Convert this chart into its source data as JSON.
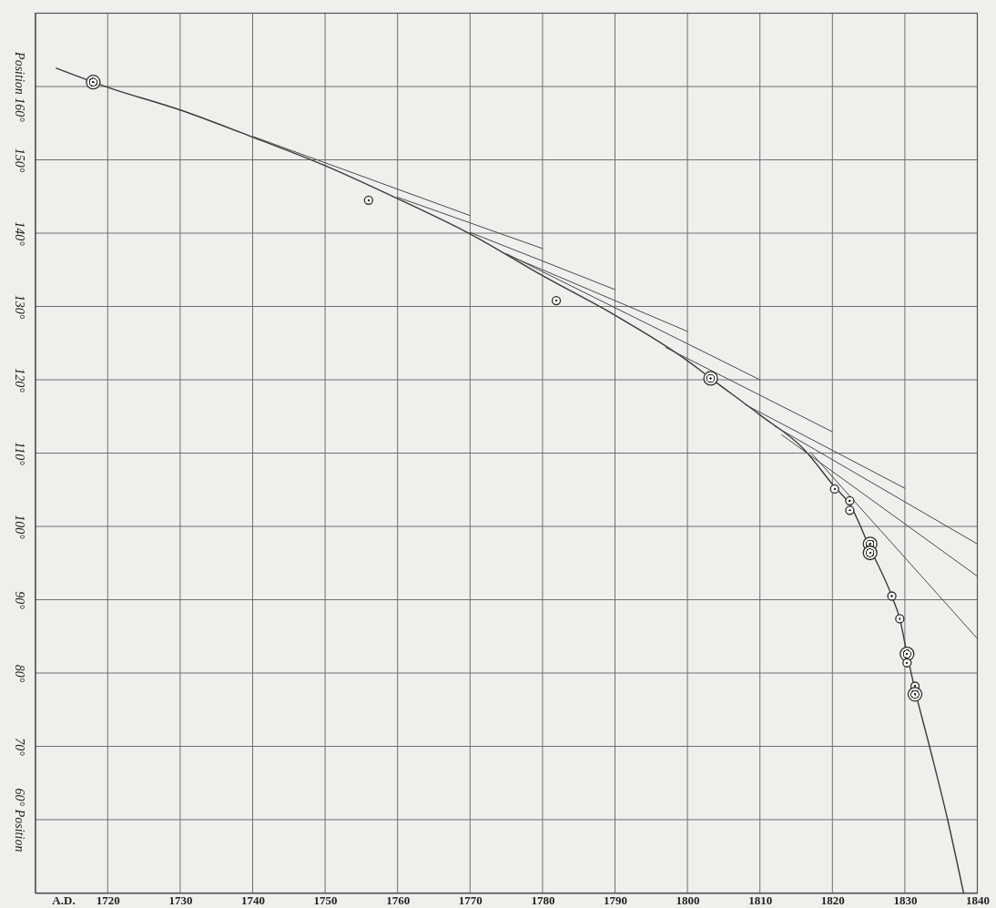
{
  "chart_data": {
    "type": "line",
    "xlabel": "A.D.",
    "xlim": [
      1710,
      1840
    ],
    "xticks": [
      1720,
      1730,
      1740,
      1750,
      1760,
      1770,
      1780,
      1790,
      1800,
      1810,
      1820,
      1830,
      1840
    ],
    "ylim": [
      50,
      170
    ],
    "yticks": [
      {
        "value": 60,
        "label": "60° Position"
      },
      {
        "value": 70,
        "label": "70°"
      },
      {
        "value": 80,
        "label": "80°"
      },
      {
        "value": 90,
        "label": "90°"
      },
      {
        "value": 100,
        "label": "100°"
      },
      {
        "value": 110,
        "label": "110°"
      },
      {
        "value": 120,
        "label": "120°"
      },
      {
        "value": 130,
        "label": "130°"
      },
      {
        "value": 140,
        "label": "140°"
      },
      {
        "value": 150,
        "label": "150°"
      },
      {
        "value": 160,
        "label": "Position 160°"
      }
    ],
    "grid": true,
    "series": [
      {
        "color": "#3a3a3a",
        "x": [
          1712.9,
          1720,
          1730,
          1740,
          1750,
          1760,
          1770,
          1780,
          1790,
          1800,
          1803.2,
          1810,
          1816,
          1820.3,
          1822.4,
          1825.2,
          1828.2,
          1829.3,
          1830.3,
          1831.4,
          1833.4,
          1835.9,
          1838.1
        ],
        "values": [
          162.5,
          159.9,
          156.8,
          153.1,
          149.2,
          144.7,
          139.9,
          134.2,
          128.8,
          122.6,
          120.2,
          115.2,
          110.6,
          105.4,
          103.0,
          97.0,
          90.5,
          87.4,
          82.6,
          77.7,
          70,
          60,
          50
        ]
      },
      {
        "color": "#4a4a4a",
        "x": [
          1740,
          1770
        ],
        "values": [
          153.2,
          142.4
        ]
      },
      {
        "color": "#4a4a4a",
        "x": [
          1760,
          1780
        ],
        "values": [
          144.9,
          137.9
        ]
      },
      {
        "color": "#4a4a4a",
        "x": [
          1770,
          1790
        ],
        "values": [
          140.1,
          132.3
        ]
      },
      {
        "color": "#4a4a4a",
        "x": [
          1775,
          1800
        ],
        "values": [
          137.1,
          126.6
        ]
      },
      {
        "color": "#4a4a4a",
        "x": [
          1775,
          1810
        ],
        "values": [
          137.2,
          120.0
        ]
      },
      {
        "color": "#4a4a4a",
        "x": [
          1797,
          1820
        ],
        "values": [
          124.4,
          112.9
        ]
      },
      {
        "color": "#4a4a4a",
        "x": [
          1808,
          1830
        ],
        "values": [
          116.6,
          105.2
        ]
      },
      {
        "color": "#4a4a4a",
        "x": [
          1812,
          1840
        ],
        "values": [
          113.7,
          97.6
        ]
      },
      {
        "color": "#4a4a4a",
        "x": [
          1813,
          1840
        ],
        "values": [
          112.5,
          93.2
        ]
      },
      {
        "color": "#4a4a4a",
        "x": [
          1817,
          1840
        ],
        "values": [
          110.1,
          84.7
        ]
      },
      {
        "type": "bubble",
        "color": "#2e2e2e",
        "x": [
          1718.0,
          1756.0,
          1781.9,
          1803.2,
          1820.3,
          1822.4,
          1822.4,
          1825.2,
          1825.2,
          1828.2,
          1829.3,
          1830.3,
          1830.3,
          1831.4,
          1831.4
        ],
        "values": [
          160.6,
          144.5,
          130.8,
          120.2,
          105.1,
          103.5,
          102.2,
          97.6,
          96.4,
          90.5,
          87.4,
          82.6,
          81.4,
          78.2,
          77.1
        ],
        "sizes": [
          1,
          0.36,
          0.36,
          1,
          0.36,
          0.36,
          0.36,
          1,
          1,
          0.36,
          0.36,
          1,
          0.36,
          0.36,
          1
        ]
      }
    ]
  }
}
